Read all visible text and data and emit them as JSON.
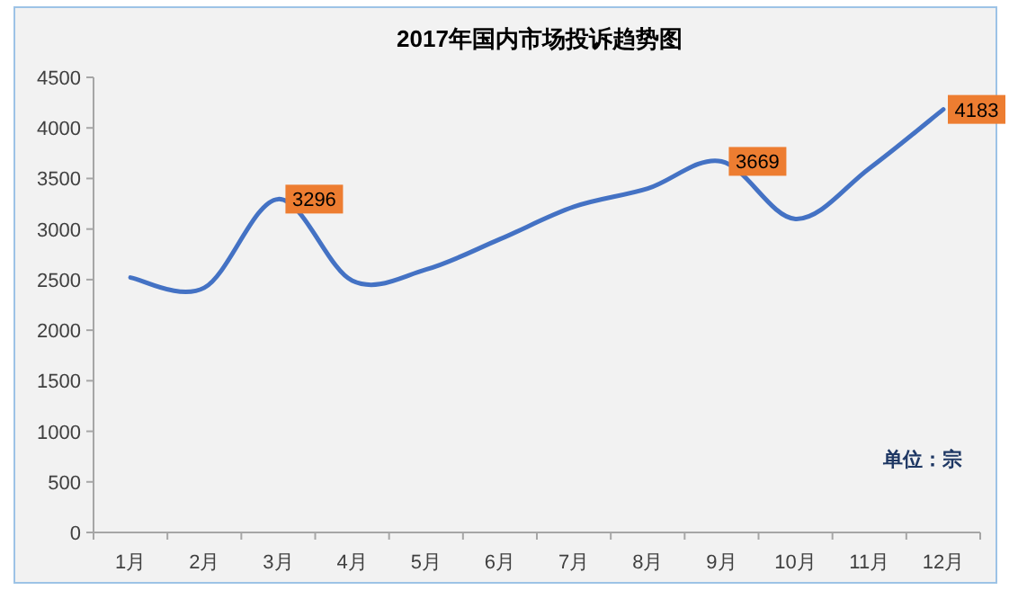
{
  "chart_data": {
    "type": "line",
    "title": "2017年国内市场投诉趋势图",
    "categories": [
      "1月",
      "2月",
      "3月",
      "4月",
      "5月",
      "6月",
      "7月",
      "8月",
      "9月",
      "10月",
      "11月",
      "12月"
    ],
    "series": [
      {
        "color": "#4472c4",
        "values": [
          2520,
          2420,
          3296,
          2490,
          2600,
          2900,
          3220,
          3400,
          3669,
          3100,
          3600,
          4183
        ],
        "value_labels": [
          null,
          null,
          "3296",
          null,
          null,
          null,
          null,
          null,
          "3669",
          null,
          null,
          "4183"
        ]
      }
    ],
    "ylim": [
      0,
      4500
    ],
    "yticks": [
      0,
      500,
      1000,
      1500,
      2000,
      2500,
      3000,
      3500,
      4000,
      4500
    ],
    "grid": false,
    "marker": "none",
    "line_style": "solid",
    "annotations": [
      "单位：宗"
    ]
  }
}
